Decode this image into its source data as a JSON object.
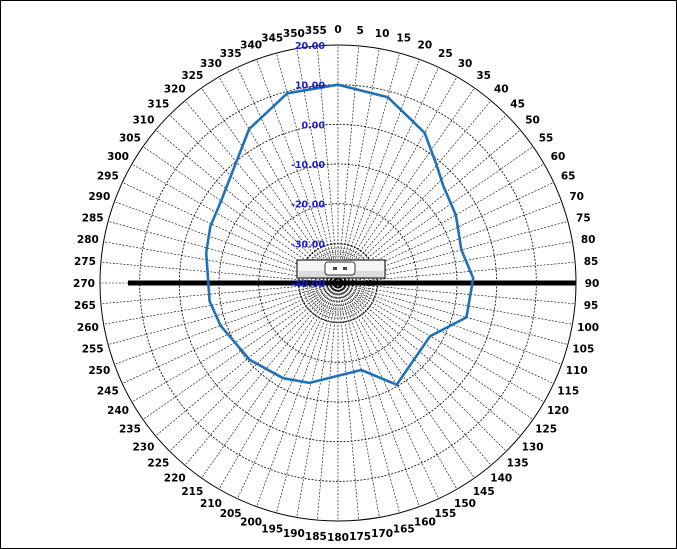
{
  "chart_data": {
    "type": "polar-line",
    "title": "",
    "angular_direction": "clockwise",
    "zero_location": "top",
    "angle_tick_step": 5,
    "radial_range": [
      -40,
      20
    ],
    "radial_ticks": [
      "-40.00",
      "-30.00",
      "-20.00",
      "-10.00",
      "0.00",
      "10.00",
      "20.00"
    ],
    "grid": true,
    "series": [
      {
        "color": "#1f72b8",
        "angles": [
          0,
          15,
          30,
          40,
          47,
          60,
          75,
          88,
          105,
          120,
          150,
          165,
          196,
          210,
          229,
          250,
          262,
          283,
          294,
          305,
          317,
          330,
          345,
          360
        ],
        "values": [
          10,
          8.5,
          3.7,
          -1.3,
          -3.8,
          -5.7,
          -7.8,
          -5.9,
          -6.5,
          -13.2,
          -10.4,
          -17.3,
          -13.8,
          -12.3,
          -10.5,
          -8.5,
          -7.3,
          -5.9,
          -4.8,
          -4.0,
          -1.2,
          4.8,
          9.5,
          10
        ]
      }
    ],
    "colors": {
      "grid": "#000000",
      "radial_labels": "#1a1ad6",
      "axis_bar": "#000000"
    }
  }
}
